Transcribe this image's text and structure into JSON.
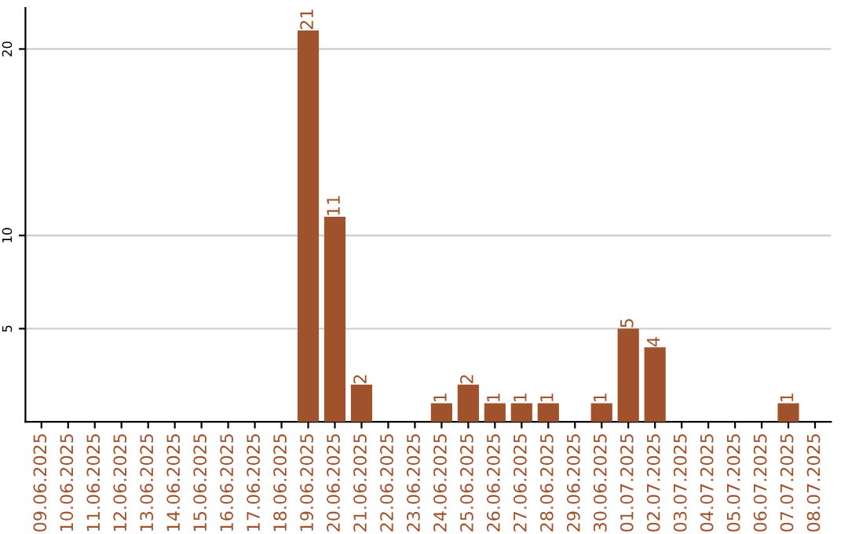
{
  "chart_data": {
    "type": "bar",
    "categories": [
      "09.06.2025",
      "10.06.2025",
      "11.06.2025",
      "12.06.2025",
      "13.06.2025",
      "14.06.2025",
      "15.06.2025",
      "16.06.2025",
      "17.06.2025",
      "18.06.2025",
      "19.06.2025",
      "20.06.2025",
      "21.06.2025",
      "22.06.2025",
      "23.06.2025",
      "24.06.2025",
      "25.06.2025",
      "26.06.2025",
      "27.06.2025",
      "28.06.2025",
      "29.06.2025",
      "30.06.2025",
      "01.07.2025",
      "02.07.2025",
      "03.07.2025",
      "04.07.2025",
      "05.07.2025",
      "06.07.2025",
      "07.07.2025",
      "08.07.2025"
    ],
    "values": [
      0,
      0,
      0,
      0,
      0,
      0,
      0,
      0,
      0,
      0,
      21,
      11,
      2,
      0,
      0,
      1,
      2,
      1,
      1,
      1,
      0,
      1,
      5,
      4,
      0,
      0,
      0,
      0,
      1,
      0
    ],
    "value_labels": [
      null,
      null,
      null,
      null,
      null,
      null,
      null,
      null,
      null,
      null,
      "21",
      "11",
      "2",
      null,
      null,
      "1",
      "2",
      "1",
      "1",
      "1",
      null,
      "1",
      "5",
      "4",
      null,
      null,
      null,
      null,
      "1",
      null
    ],
    "color": "#a0522d",
    "ylim": [
      0,
      22.2
    ],
    "yticks": [
      5,
      10,
      20
    ],
    "grid": "y",
    "legend": false
  }
}
